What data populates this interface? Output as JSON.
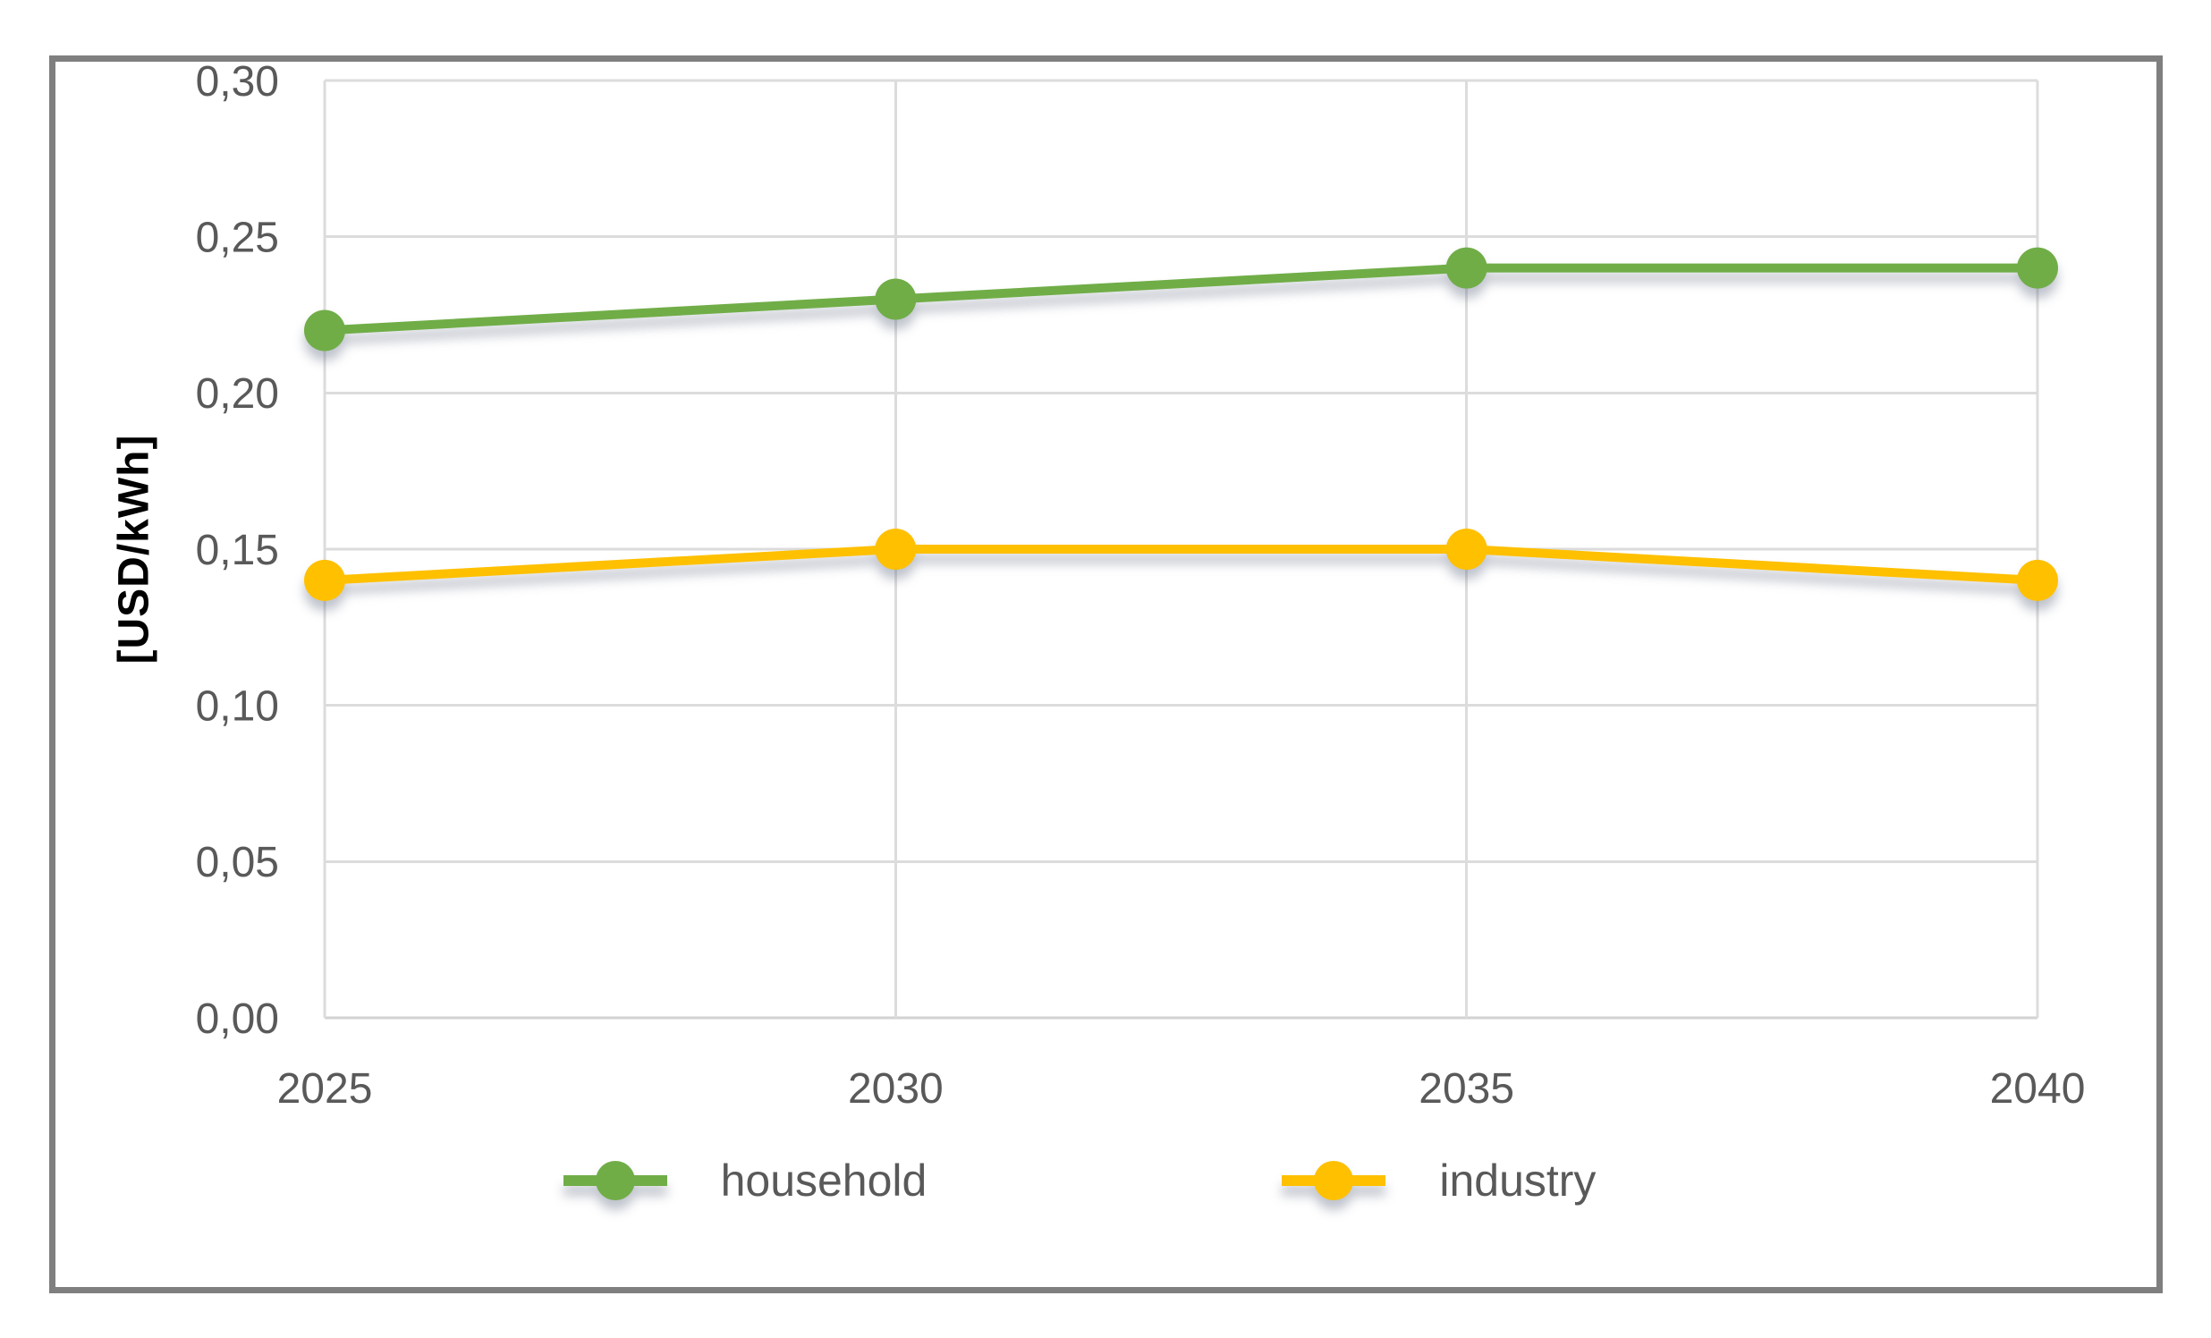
{
  "chart_data": {
    "type": "line",
    "categories": [
      "2025",
      "2030",
      "2035",
      "2040"
    ],
    "series": [
      {
        "name": "household",
        "color": "#70AD47",
        "values": [
          0.22,
          0.23,
          0.24,
          0.24
        ]
      },
      {
        "name": "industry",
        "color": "#FFC000",
        "values": [
          0.14,
          0.15,
          0.15,
          0.14
        ]
      }
    ],
    "title": "",
    "xlabel": "",
    "ylabel": "[USD/kWh]",
    "ylim": [
      0,
      0.3
    ],
    "ytick_step": 0.05,
    "y_tick_labels": [
      "0,00",
      "0,05",
      "0,10",
      "0,15",
      "0,20",
      "0,25",
      "0,30"
    ],
    "decimal_separator": ",",
    "grid": "horizontal and vertical gridlines on",
    "marker": "circle",
    "legend_position": "bottom"
  },
  "style": {
    "axis_text_color": "#595959",
    "legend_text_color": "#595959",
    "gridline_color": "#DCDCDC",
    "axis_line_color": "#D2D2D2",
    "frame_border_color": "#7F7F7F",
    "background_color": "#FFFFFF"
  }
}
